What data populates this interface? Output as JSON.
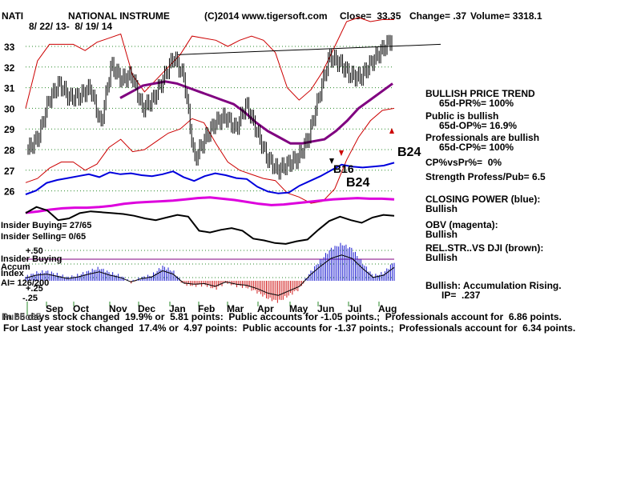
{
  "header": {
    "ticker": "NATI",
    "name": "NATIONAL INSTRUME",
    "copyright": "(C)2014 www.tigersoft.com",
    "close": "Close=  33.35",
    "change": "Change= .37",
    "volume": "Volume= 3318.1",
    "dates": "8/ 22/ 13-  8/ 19/ 14"
  },
  "chart_data": {
    "type": "line",
    "y_ticks": [
      "33",
      "32",
      "31",
      "30",
      "29",
      "28",
      "27",
      "26"
    ],
    "y_tick_values": [
      33,
      32,
      31,
      30,
      29,
      28,
      27,
      26
    ],
    "ylim": [
      25.2,
      33.8
    ],
    "x_ticks": [
      "Sep",
      "Oct",
      "Nov",
      "Dec",
      "Jan",
      "Feb",
      "Mar",
      "Apr",
      "May",
      "Jun",
      "Jul",
      "Aug"
    ],
    "price_series": {
      "name": "Price",
      "values": [
        28.0,
        28.6,
        30.4,
        31.2,
        30.5,
        30.6,
        31.0,
        29.2,
        32.1,
        31.4,
        31.6,
        30.0,
        30.4,
        31.4,
        32.5,
        31.5,
        27.5,
        28.5,
        29.3,
        29.6,
        29.0,
        30.2,
        28.9,
        27.6,
        27.0,
        27.3,
        27.6,
        28.6,
        30.6,
        32.5,
        32.2,
        31.6,
        31.5,
        32.2,
        32.8,
        33.35
      ],
      "color": "#000000"
    },
    "band_upper": {
      "values": [
        30.0,
        32.3,
        33.1,
        33.1,
        33.1,
        32.8,
        33.2,
        33.4,
        33.6,
        31.6,
        30.8,
        31.4,
        32.0,
        32.6,
        33.5,
        33.4,
        33.3,
        33.0,
        33.3,
        33.5,
        33.3,
        32.7,
        31.0,
        30.4,
        30.9,
        31.8,
        33.0,
        34.2,
        34.4,
        34.2,
        34.3,
        34.3
      ],
      "color": "#cc0000"
    },
    "band_lower": {
      "values": [
        26.4,
        26.6,
        27.1,
        27.4,
        27.4,
        27.0,
        27.3,
        28.1,
        28.5,
        27.9,
        28.0,
        28.4,
        28.8,
        29.0,
        29.5,
        29.3,
        28.3,
        27.4,
        27.0,
        26.8,
        26.6,
        26.5,
        25.9,
        25.7,
        25.4,
        25.5,
        26.1,
        27.5,
        28.6,
        29.4,
        29.9,
        30.0
      ],
      "color": "#cc0000"
    },
    "moving_average": {
      "values": [
        30.5,
        30.8,
        31.1,
        31.2,
        31.3,
        31.2,
        31.0,
        30.8,
        30.6,
        30.4,
        30.2,
        29.8,
        29.3,
        28.9,
        28.6,
        28.3,
        28.3,
        28.4,
        28.5,
        28.9,
        29.4,
        30.0,
        30.4,
        30.8,
        31.2
      ],
      "color": "#800080"
    },
    "resistance_line": {
      "values": [
        32.6,
        33.1
      ],
      "color": "#000000"
    },
    "signals": [
      "B16",
      "B24",
      "B24"
    ],
    "indicator_labels": [
      "+.50",
      "+.25",
      "-.25"
    ],
    "closing_power": {
      "name": "Closing Power",
      "color": "#0000dd",
      "values": [
        10,
        14,
        22,
        25,
        27,
        29,
        31,
        28,
        33,
        31,
        32,
        30,
        29,
        31,
        34,
        28,
        24,
        29,
        32,
        30,
        27,
        26,
        18,
        13,
        11,
        12,
        19,
        24,
        29,
        35,
        41,
        39,
        38,
        39,
        40,
        43
      ]
    },
    "obv": {
      "name": "OBV",
      "color": "#dd00dd",
      "values": [
        30,
        32,
        35,
        37,
        38,
        38,
        39,
        41,
        44,
        46,
        47,
        48,
        49,
        51,
        53,
        54,
        52,
        50,
        47,
        44,
        42,
        43,
        45,
        47,
        49,
        51,
        52,
        53,
        52,
        52,
        51
      ]
    },
    "relative_strength": {
      "name": "Rel. Str. vs DJI",
      "color": "#000000",
      "values": [
        56,
        63,
        59,
        48,
        50,
        56,
        58,
        57,
        56,
        55,
        53,
        50,
        48,
        51,
        54,
        52,
        36,
        34,
        37,
        39,
        36,
        27,
        25,
        22,
        21,
        24,
        26,
        37,
        47,
        52,
        48,
        45,
        51,
        54,
        53
      ]
    },
    "accumulation": {
      "name": "Accum Index",
      "values": [
        5,
        10,
        12,
        8,
        4,
        7,
        12,
        16,
        10,
        6,
        -2,
        4,
        7,
        18,
        12,
        -4,
        -6,
        -5,
        -10,
        -2,
        -6,
        -8,
        -14,
        -22,
        -26,
        -18,
        -10,
        10,
        26,
        40,
        46,
        40,
        22,
        6,
        10,
        24
      ]
    }
  },
  "side_panel": {
    "trend_title": "BULLISH PRICE TREND",
    "pr": "65d-PR%= 100%",
    "public_title": "Public is bullish",
    "op": "65d-OP%= 16.9%",
    "prof_title": "Professionals are bullish",
    "cp": "65d-CP%= 100%",
    "cpvspr": "CP%vsPr%=  0%",
    "strength": "Strength Profess/Pub= 6.5",
    "closing_power_title": "CLOSING POWER (blue):",
    "closing_power_val": "Bullish",
    "obv_title": "OBV (magenta):",
    "obv_val": "Bullish",
    "rel_title": "REL.STR..VS DJI (brown):",
    "rel_val": "Bullish",
    "accum_title": "Bullish: Accumulation Rising.",
    "ip": "IP=  .237"
  },
  "insider": {
    "buying": "Insider Buying= 27/65",
    "selling": "Insider Selling= 0/65",
    "index_title": "Insider Buying",
    "accum": "Accum",
    "index": "Index",
    "ai": "AI= 126/200"
  },
  "footer": {
    "line1": "In 65 days stock changed  19.9% or  5.81 points:  Public accounts for -1.05 points.;  Professionals account for  6.86 points.",
    "line1_overprint": "Public65",
    "line2": "For Last year stock changed  17.4% or  4.97 points:  Public accounts for -1.37 points.;  Professionals account for  6.34 points."
  }
}
